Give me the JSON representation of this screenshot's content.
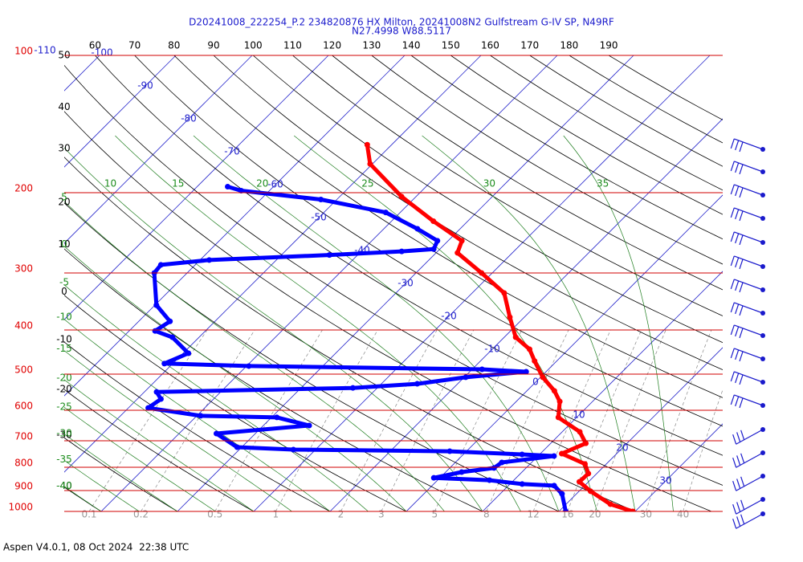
{
  "chart_data": {
    "type": "skewt",
    "title": "D20241008_222254_P.2 234820876 HX Milton, 20241008N2 Gulfstream G-IV SP, N49RF",
    "subtitle": "N27.4998 W88.5117",
    "footer": "Aspen V4.0.1, 08 Oct 2024  22:38 UTC",
    "series": [
      {
        "color": "#ff0000",
        "pressure": [
          1000,
          964,
          903,
          861,
          826,
          787,
          747,
          709,
          669,
          622,
          574,
          544,
          508,
          468,
          441,
          415,
          375,
          332,
          300,
          271,
          255,
          231,
          204,
          173,
          157
        ],
        "values": [
          29.7,
          25.8,
          21.5,
          18.8,
          18.9,
          17.2,
          12.8,
          14.6,
          12.3,
          7.6,
          5.7,
          3.6,
          0.3,
          -2.9,
          -5.1,
          -8.5,
          -11.9,
          -15.8,
          -21.4,
          -27.2,
          -28.2,
          -34.5,
          -41.9,
          -50.3,
          -53.2
        ]
      },
      {
        "color": "#0000ff",
        "pressure": [
          1000,
          915,
          878,
          871,
          854,
          844,
          820,
          803,
          781,
          756,
          750,
          738,
          732,
          723,
          675,
          648,
          622,
          617,
          593,
          567,
          547,
          536,
          525,
          508,
          494,
          488,
          480,
          474,
          450,
          415,
          402,
          383,
          353,
          300,
          288,
          281,
          274,
          269,
          266,
          255,
          240,
          221,
          207,
          198,
          194
        ],
        "values": [
          20.9,
          18.1,
          16.0,
          11.6,
          6.8,
          -0.8,
          2.1,
          5.8,
          6.1,
          12.1,
          7.7,
          -2.2,
          -22.9,
          -30.6,
          -35.1,
          -24.0,
          -29.3,
          -39.5,
          -47.4,
          -46.9,
          -48.4,
          -23.2,
          -15.3,
          -9.8,
          -2.6,
          -8.7,
          -39.7,
          -51.1,
          -49.3,
          -53.5,
          -56.6,
          -55.9,
          -59.8,
          -64.3,
          -64.5,
          -58.8,
          -43.7,
          -34.7,
          -30.8,
          -31.4,
          -35.6,
          -41.9,
          -52.1,
          -63.7,
          -66.0
        ]
      }
    ],
    "yticks": [
      100,
      200,
      300,
      400,
      500,
      600,
      700,
      800,
      900,
      1000
    ],
    "ylim": [
      100,
      1000
    ],
    "log_scale": true,
    "isotherms": [
      -110,
      -100,
      -90,
      -80,
      -70,
      -60,
      -50,
      -40,
      -30,
      -20,
      -10,
      0,
      10,
      20,
      30
    ],
    "dry_adiabats": [
      -40,
      -30,
      -20,
      -10,
      0,
      10,
      20,
      30,
      40,
      50,
      60,
      70,
      80,
      90,
      100,
      110,
      120,
      130,
      140,
      150,
      160,
      170,
      180,
      190
    ],
    "moist_adiabats": [
      -40,
      -35,
      -30,
      -25,
      -20,
      -15,
      -10,
      -5,
      0,
      5,
      10,
      15,
      20,
      25,
      30,
      35
    ],
    "mixing_ratios": [
      0.1,
      0.2,
      0.5,
      1,
      2,
      3,
      5,
      8,
      12,
      16,
      20,
      30,
      40
    ]
  }
}
